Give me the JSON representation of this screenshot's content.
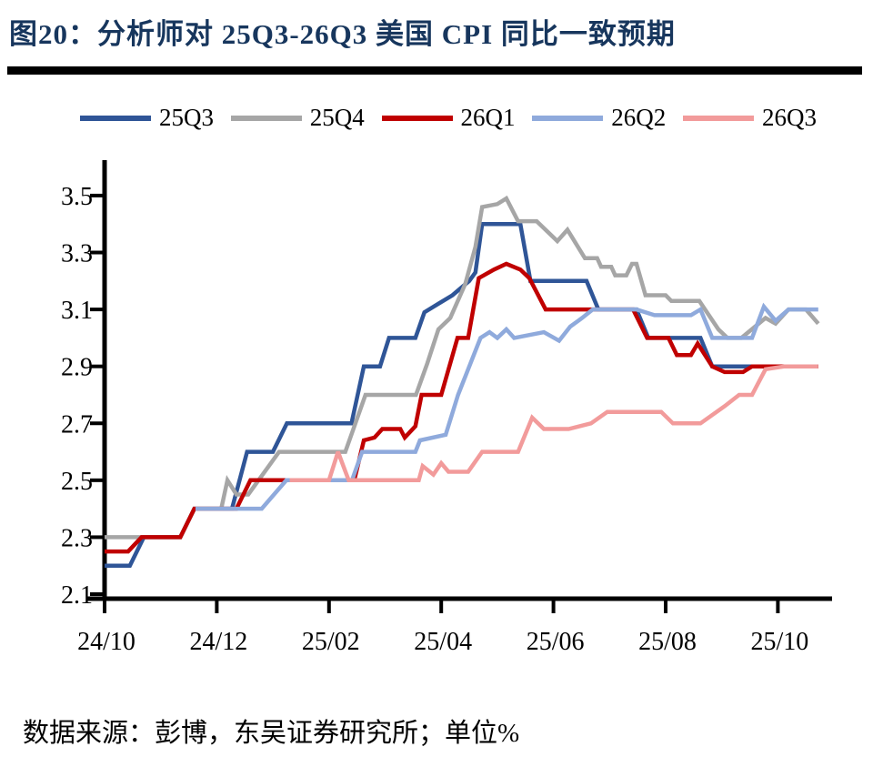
{
  "title": "图20：分析师对 25Q3-26Q3 美国 CPI 同比一致预期",
  "source_note": "数据来源：彭博，东吴证券研究所；单位%",
  "colors": {
    "title": "#17365d",
    "rule": "#000000",
    "axis": "#000000",
    "series_25Q3": "#2F5597",
    "series_25Q4": "#A6A6A6",
    "series_26Q1": "#C00000",
    "series_26Q2": "#8FAADC",
    "series_26Q3": "#F29B9B"
  },
  "chart_data": {
    "type": "line",
    "title": "图20：分析师对 25Q3-26Q3 美国 CPI 同比一致预期",
    "xlabel": "",
    "ylabel": "",
    "unit": "%",
    "grid": false,
    "legend_position": "top",
    "x_unit": "months since 2024-10",
    "xlim": [
      0,
      13
    ],
    "ylim": [
      2.1,
      3.5
    ],
    "y_ticks": [
      2.1,
      2.3,
      2.5,
      2.7,
      2.9,
      3.1,
      3.3,
      3.5
    ],
    "x_ticks": [
      {
        "t": 0,
        "label": "24/10"
      },
      {
        "t": 2,
        "label": "24/12"
      },
      {
        "t": 4,
        "label": "25/02"
      },
      {
        "t": 6,
        "label": "25/04"
      },
      {
        "t": 8,
        "label": "25/06"
      },
      {
        "t": 10,
        "label": "25/08"
      },
      {
        "t": 12,
        "label": "25/10"
      }
    ],
    "series": [
      {
        "name": "25Q3",
        "color": "#2F5597",
        "points": [
          [
            0,
            2.2
          ],
          [
            0.45,
            2.2
          ],
          [
            0.7,
            2.3
          ],
          [
            1.35,
            2.3
          ],
          [
            1.6,
            2.4
          ],
          [
            2.27,
            2.4
          ],
          [
            2.54,
            2.6
          ],
          [
            3.0,
            2.6
          ],
          [
            3.25,
            2.7
          ],
          [
            4.4,
            2.7
          ],
          [
            4.62,
            2.9
          ],
          [
            4.91,
            2.9
          ],
          [
            5.07,
            3.0
          ],
          [
            5.54,
            3.0
          ],
          [
            5.7,
            3.09
          ],
          [
            5.95,
            3.12
          ],
          [
            6.2,
            3.15
          ],
          [
            6.5,
            3.2
          ],
          [
            6.61,
            3.23
          ],
          [
            6.73,
            3.4
          ],
          [
            7.41,
            3.4
          ],
          [
            7.59,
            3.2
          ],
          [
            8.59,
            3.2
          ],
          [
            8.8,
            3.1
          ],
          [
            9.48,
            3.1
          ],
          [
            9.69,
            3.0
          ],
          [
            10.62,
            3.0
          ],
          [
            10.83,
            2.9
          ],
          [
            12.72,
            2.9
          ]
        ]
      },
      {
        "name": "25Q4",
        "color": "#A6A6A6",
        "points": [
          [
            0,
            2.3
          ],
          [
            1.35,
            2.3
          ],
          [
            1.6,
            2.4
          ],
          [
            2.08,
            2.4
          ],
          [
            2.19,
            2.5
          ],
          [
            2.35,
            2.45
          ],
          [
            2.56,
            2.45
          ],
          [
            3.11,
            2.6
          ],
          [
            4.29,
            2.6
          ],
          [
            4.65,
            2.8
          ],
          [
            5.55,
            2.8
          ],
          [
            5.75,
            2.91
          ],
          [
            5.95,
            3.03
          ],
          [
            6.16,
            3.07
          ],
          [
            6.43,
            3.19
          ],
          [
            6.61,
            3.32
          ],
          [
            6.73,
            3.46
          ],
          [
            7.0,
            3.47
          ],
          [
            7.16,
            3.49
          ],
          [
            7.37,
            3.41
          ],
          [
            7.7,
            3.41
          ],
          [
            8.07,
            3.34
          ],
          [
            8.25,
            3.38
          ],
          [
            8.56,
            3.28
          ],
          [
            8.78,
            3.28
          ],
          [
            8.85,
            3.25
          ],
          [
            9.03,
            3.25
          ],
          [
            9.1,
            3.22
          ],
          [
            9.3,
            3.22
          ],
          [
            9.4,
            3.26
          ],
          [
            9.48,
            3.26
          ],
          [
            9.64,
            3.15
          ],
          [
            10.0,
            3.15
          ],
          [
            10.1,
            3.13
          ],
          [
            10.6,
            3.13
          ],
          [
            10.94,
            3.03
          ],
          [
            11.1,
            3.0
          ],
          [
            11.35,
            3.0
          ],
          [
            11.78,
            3.07
          ],
          [
            11.96,
            3.05
          ],
          [
            12.19,
            3.1
          ],
          [
            12.5,
            3.1
          ],
          [
            12.72,
            3.05
          ]
        ]
      },
      {
        "name": "26Q1",
        "color": "#C00000",
        "points": [
          [
            0,
            2.25
          ],
          [
            0.42,
            2.25
          ],
          [
            0.66,
            2.3
          ],
          [
            1.35,
            2.3
          ],
          [
            1.6,
            2.4
          ],
          [
            2.35,
            2.4
          ],
          [
            2.6,
            2.5
          ],
          [
            4.45,
            2.5
          ],
          [
            4.62,
            2.64
          ],
          [
            4.81,
            2.65
          ],
          [
            4.95,
            2.68
          ],
          [
            5.27,
            2.68
          ],
          [
            5.35,
            2.65
          ],
          [
            5.54,
            2.69
          ],
          [
            5.65,
            2.8
          ],
          [
            6.0,
            2.8
          ],
          [
            6.29,
            3.0
          ],
          [
            6.48,
            3.0
          ],
          [
            6.67,
            3.21
          ],
          [
            6.94,
            3.24
          ],
          [
            7.16,
            3.26
          ],
          [
            7.41,
            3.24
          ],
          [
            7.57,
            3.21
          ],
          [
            7.86,
            3.1
          ],
          [
            9.42,
            3.1
          ],
          [
            9.67,
            3.0
          ],
          [
            10.05,
            3.0
          ],
          [
            10.2,
            2.94
          ],
          [
            10.45,
            2.94
          ],
          [
            10.57,
            2.98
          ],
          [
            10.83,
            2.9
          ],
          [
            11.05,
            2.88
          ],
          [
            11.38,
            2.88
          ],
          [
            11.54,
            2.9
          ],
          [
            12.72,
            2.9
          ]
        ]
      },
      {
        "name": "26Q2",
        "color": "#8FAADC",
        "points": [
          [
            1.62,
            2.4
          ],
          [
            2.8,
            2.4
          ],
          [
            3.24,
            2.5
          ],
          [
            4.41,
            2.5
          ],
          [
            4.59,
            2.6
          ],
          [
            5.54,
            2.6
          ],
          [
            5.62,
            2.64
          ],
          [
            6.08,
            2.66
          ],
          [
            6.3,
            2.8
          ],
          [
            6.7,
            3.0
          ],
          [
            6.86,
            3.02
          ],
          [
            7.0,
            3.0
          ],
          [
            7.16,
            3.03
          ],
          [
            7.3,
            3.0
          ],
          [
            7.83,
            3.02
          ],
          [
            8.1,
            2.99
          ],
          [
            8.3,
            3.04
          ],
          [
            8.51,
            3.07
          ],
          [
            8.7,
            3.1
          ],
          [
            9.48,
            3.1
          ],
          [
            9.8,
            3.08
          ],
          [
            10.45,
            3.08
          ],
          [
            10.62,
            3.1
          ],
          [
            10.83,
            3.0
          ],
          [
            11.54,
            3.0
          ],
          [
            11.75,
            3.11
          ],
          [
            11.96,
            3.06
          ],
          [
            12.19,
            3.1
          ],
          [
            12.72,
            3.1
          ]
        ]
      },
      {
        "name": "26Q3",
        "color": "#F29B9B",
        "points": [
          [
            3.3,
            2.5
          ],
          [
            4.0,
            2.5
          ],
          [
            4.16,
            2.6
          ],
          [
            4.35,
            2.5
          ],
          [
            5.6,
            2.5
          ],
          [
            5.67,
            2.55
          ],
          [
            5.86,
            2.52
          ],
          [
            6.0,
            2.56
          ],
          [
            6.13,
            2.53
          ],
          [
            6.48,
            2.53
          ],
          [
            6.73,
            2.6
          ],
          [
            7.37,
            2.6
          ],
          [
            7.62,
            2.72
          ],
          [
            7.83,
            2.68
          ],
          [
            8.27,
            2.68
          ],
          [
            8.67,
            2.7
          ],
          [
            8.96,
            2.74
          ],
          [
            9.92,
            2.74
          ],
          [
            10.13,
            2.7
          ],
          [
            10.62,
            2.7
          ],
          [
            11.05,
            2.76
          ],
          [
            11.31,
            2.8
          ],
          [
            11.54,
            2.8
          ],
          [
            11.78,
            2.89
          ],
          [
            12.12,
            2.9
          ],
          [
            12.72,
            2.9
          ]
        ]
      }
    ]
  }
}
